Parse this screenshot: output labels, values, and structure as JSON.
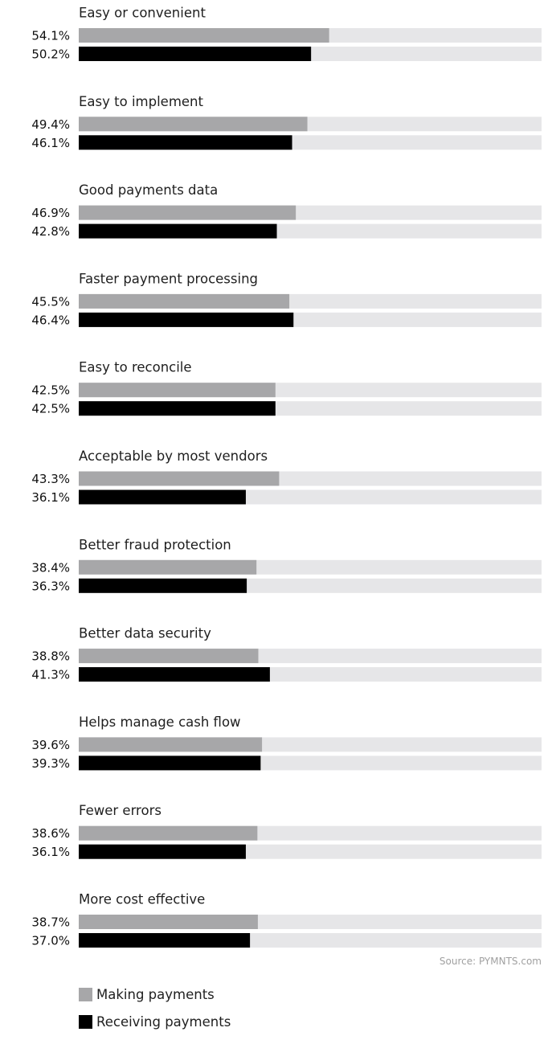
{
  "chart_data": {
    "type": "bar",
    "orientation": "horizontal",
    "categories": [
      "Easy or convenient",
      "Easy to implement",
      "Good payments data",
      "Faster payment processing",
      "Easy to reconcile",
      "Acceptable by most vendors",
      "Better fraud protection",
      "Better data security",
      "Helps manage cash flow",
      "Fewer errors",
      "More cost effective"
    ],
    "series": [
      {
        "name": "Making payments",
        "color": "#a7a7a9",
        "values": [
          54.1,
          49.4,
          46.9,
          45.5,
          42.5,
          43.3,
          38.4,
          38.8,
          39.6,
          38.6,
          38.7
        ],
        "labels": [
          "54.1%",
          "49.4%",
          "46.9%",
          "45.5%",
          "42.5%",
          "43.3%",
          "38.4%",
          "38.8%",
          "39.6%",
          "38.6%",
          "38.7%"
        ]
      },
      {
        "name": "Receiving payments",
        "color": "#000000",
        "values": [
          50.2,
          46.1,
          42.8,
          46.4,
          42.5,
          36.1,
          36.3,
          41.3,
          39.3,
          36.1,
          37.0
        ],
        "labels": [
          "50.2%",
          "46.1%",
          "42.8%",
          "46.4%",
          "42.5%",
          "36.1%",
          "36.3%",
          "41.3%",
          "39.3%",
          "36.1%",
          "37.0%"
        ]
      }
    ],
    "xlim": [
      0,
      100
    ],
    "track_color": "#e6e6e8",
    "source": "Source: PYMNTS.com",
    "grid": false,
    "legend_position": "bottom-left"
  }
}
